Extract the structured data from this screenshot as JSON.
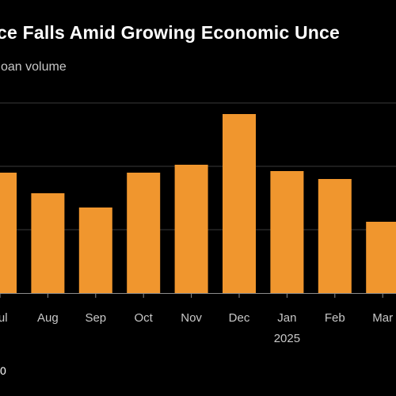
{
  "chart_data": {
    "type": "bar",
    "title": "ce Falls Amid Growing Economic Unce",
    "subtitle": "oan volume",
    "categories": [
      "Jul",
      "Aug",
      "Sep",
      "Oct",
      "Nov",
      "Dec",
      "Jan",
      "Feb",
      "Mar"
    ],
    "year_labels": [
      "",
      "",
      "",
      "",
      "",
      "",
      "2025",
      "",
      ""
    ],
    "values": [
      76,
      63,
      54,
      76,
      81,
      113,
      77,
      72,
      45
    ],
    "xlabel": "",
    "ylabel": "",
    "ylim": [
      0,
      120
    ],
    "gridlines": [
      40,
      80,
      120
    ],
    "grid": true,
    "legend": "none",
    "bar_color": "#f0962e",
    "gridline_color": "#3a3a3a",
    "axis_color": "#8c8c8c",
    "background": "#000000"
  },
  "footer_mark": "0"
}
